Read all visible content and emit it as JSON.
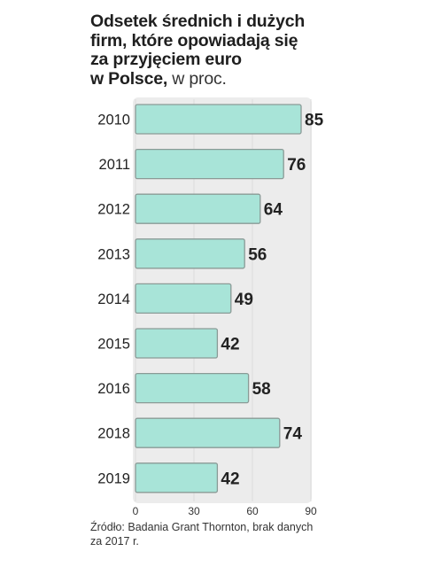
{
  "title": {
    "lines": [
      "Odsetek średnich i dużych",
      "firm, które opowiadają się",
      "za przyjęciem euro"
    ],
    "last_bold": "w Polsce,",
    "unit": " w proc."
  },
  "source": {
    "line1": "Źródło: Badania Grant Thornton, brak danych",
    "line2": "za 2017 r."
  },
  "colors": {
    "bar": "#a8e4d8",
    "bar_stroke": "#8a9a96",
    "plot_bg": "#ececec"
  },
  "chart_data": {
    "type": "bar",
    "orientation": "horizontal",
    "categories": [
      "2010",
      "2011",
      "2012",
      "2013",
      "2014",
      "2015",
      "2016",
      "2018",
      "2019"
    ],
    "values": [
      85,
      76,
      64,
      56,
      49,
      42,
      58,
      74,
      42
    ],
    "xlim": [
      0,
      90
    ],
    "xticks": [
      "0",
      "30",
      "60",
      "90"
    ],
    "grid": true,
    "legend": "none"
  }
}
